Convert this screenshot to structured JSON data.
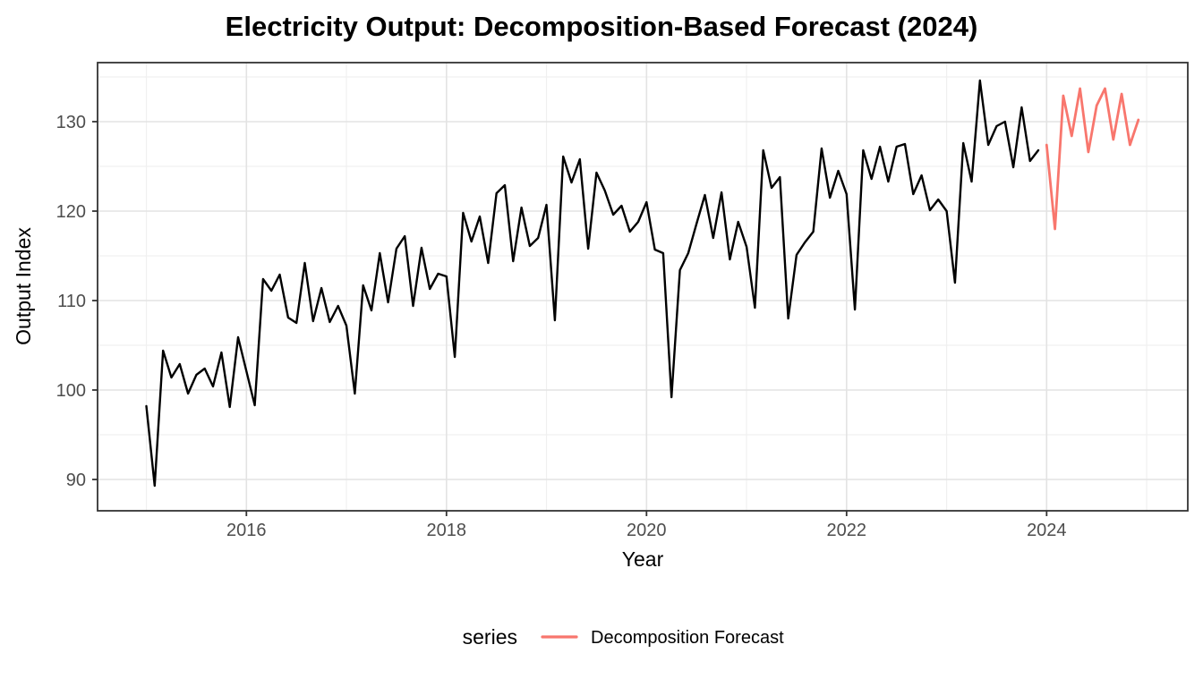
{
  "title": "Electricity Output: Decomposition-Based Forecast (2024)",
  "chart_data": {
    "type": "line",
    "title": "Electricity Output: Decomposition-Based Forecast (2024)",
    "xlabel": "Year",
    "ylabel": "Output Index",
    "xlim": [
      2014.512,
      2025.411
    ],
    "ylim": [
      86.5,
      136.6
    ],
    "x_major_ticks": [
      2016,
      2018,
      2020,
      2022,
      2024
    ],
    "x_minor_ticks": [
      2015,
      2017,
      2019,
      2021,
      2023,
      2025
    ],
    "y_major_ticks": [
      90,
      100,
      110,
      120,
      130
    ],
    "y_minor_ticks": [
      95,
      105,
      115,
      125,
      135
    ],
    "grid": true,
    "legend": {
      "title": "series",
      "position": "bottom",
      "entries": [
        {
          "label": "Decomposition Forecast",
          "color": "#F8766D"
        }
      ]
    },
    "series": [
      {
        "name": "historical",
        "color": "#000000",
        "stroke_width": 2.4,
        "start_year": 2015.0,
        "frequency": "monthly",
        "values": [
          98.2,
          89.3,
          104.4,
          101.4,
          102.9,
          99.6,
          101.7,
          102.4,
          100.4,
          104.2,
          98.1,
          105.9,
          102.1,
          98.3,
          112.4,
          111.1,
          112.9,
          108.1,
          107.5,
          114.2,
          107.7,
          111.4,
          107.6,
          109.4,
          107.2,
          99.6,
          111.7,
          108.9,
          115.3,
          109.8,
          115.8,
          117.2,
          109.4,
          115.9,
          111.3,
          113.0,
          112.7,
          103.7,
          119.8,
          116.6,
          119.4,
          114.2,
          122.0,
          122.9,
          114.4,
          120.4,
          116.1,
          117.0,
          120.7,
          107.8,
          126.1,
          123.2,
          125.8,
          115.8,
          124.3,
          122.3,
          119.6,
          120.6,
          117.7,
          118.8,
          121.0,
          115.7,
          115.3,
          99.2,
          113.4,
          115.3,
          118.6,
          121.8,
          117.0,
          122.1,
          114.6,
          118.8,
          116.0,
          109.2,
          126.8,
          122.6,
          123.8,
          108.0,
          115.1,
          116.5,
          117.7,
          127.0,
          121.5,
          124.5,
          121.9,
          109.0,
          126.8,
          123.6,
          127.2,
          123.3,
          127.2,
          127.5,
          121.9,
          124.0,
          120.1,
          121.3,
          120.0,
          112.0,
          127.6,
          123.3,
          134.6,
          127.4,
          129.5,
          130.0,
          124.9,
          131.6,
          125.6,
          126.8
        ]
      },
      {
        "name": "Decomposition Forecast",
        "color": "#F8766D",
        "stroke_width": 2.8,
        "start_year": 2024.0,
        "frequency": "monthly",
        "values": [
          127.4,
          118.0,
          132.9,
          128.4,
          133.7,
          126.6,
          131.8,
          133.7,
          128.0,
          133.1,
          127.4,
          130.2
        ]
      }
    ]
  },
  "style_colors": {
    "panel_background": "#ffffff",
    "panel_border": "#333333",
    "grid_major": "#e3e3e3",
    "grid_minor": "#f0f0f0",
    "tick_mark": "#333333",
    "tick_label": "#4d4d4d",
    "forecast_red": "#F8766D",
    "historical_black": "#000000"
  }
}
